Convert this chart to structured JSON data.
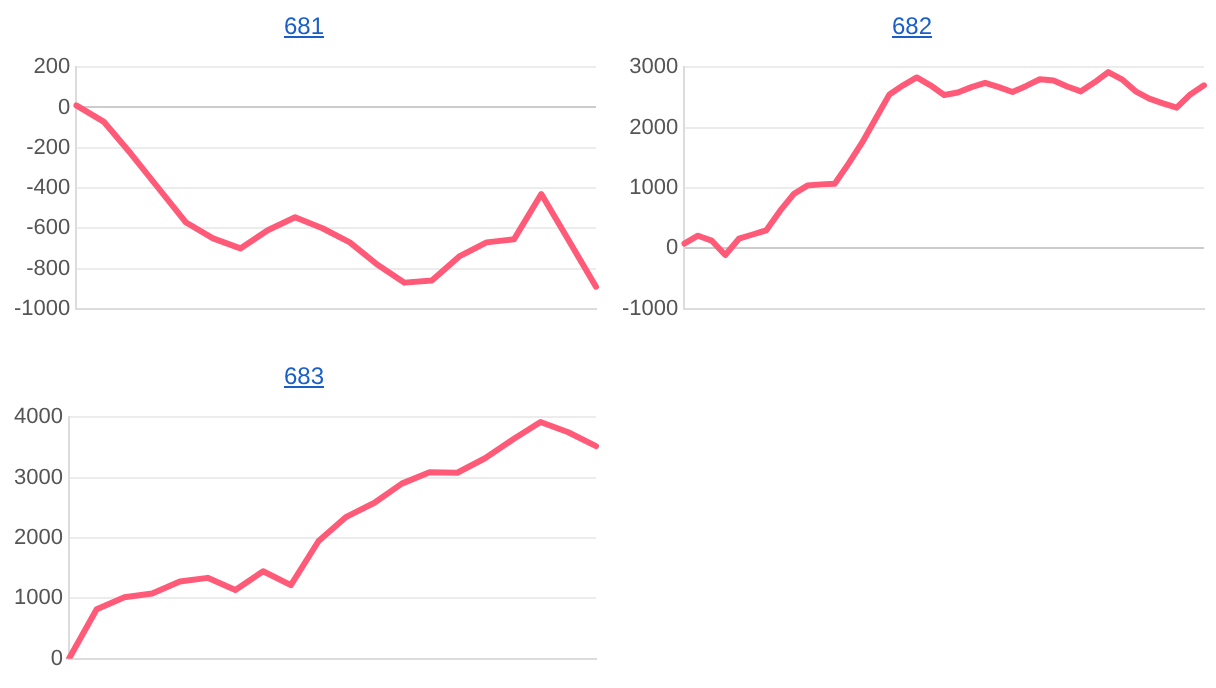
{
  "chart_data": [
    {
      "type": "line",
      "title": "681",
      "categories": [
        null,
        null,
        null,
        null,
        null,
        null,
        null,
        null,
        null,
        null,
        null,
        null,
        null,
        null,
        null,
        null,
        null,
        null,
        null,
        null
      ],
      "series": [
        {
          "color": "#ff5a78",
          "values": [
            10,
            -70,
            -230,
            -400,
            -570,
            -650,
            -700,
            -610,
            -545,
            -600,
            -670,
            -780,
            -870,
            -860,
            -740,
            -670,
            -655,
            -430,
            -660,
            -890
          ]
        }
      ],
      "ylim": [
        -1000,
        200
      ],
      "yticks": [
        -1000,
        -800,
        -600,
        -400,
        -200,
        0,
        200
      ],
      "grid": "y",
      "tick_labels": "y",
      "marker": "none"
    },
    {
      "type": "line",
      "title": "682",
      "categories": [
        null,
        null,
        null,
        null,
        null,
        null,
        null,
        null,
        null,
        null,
        null,
        null,
        null,
        null,
        null,
        null,
        null,
        null,
        null,
        null,
        null,
        null,
        null,
        null,
        null,
        null,
        null,
        null,
        null,
        null,
        null,
        null,
        null,
        null,
        null,
        null,
        null,
        null,
        null
      ],
      "series": [
        {
          "color": "#ff5a78",
          "values": [
            80,
            210,
            130,
            -110,
            160,
            230,
            300,
            620,
            900,
            1040,
            1060,
            1070,
            1400,
            1750,
            2150,
            2550,
            2700,
            2830,
            2700,
            2540,
            2580,
            2670,
            2740,
            2670,
            2590,
            2690,
            2800,
            2780,
            2680,
            2600,
            2750,
            2920,
            2800,
            2600,
            2480,
            2400,
            2330,
            2550,
            2700
          ]
        }
      ],
      "ylim": [
        -1000,
        3000
      ],
      "yticks": [
        -1000,
        0,
        1000,
        2000,
        3000
      ],
      "grid": "y",
      "tick_labels": "y",
      "marker": "none"
    },
    {
      "type": "line",
      "title": "683",
      "categories": [
        null,
        null,
        null,
        null,
        null,
        null,
        null,
        null,
        null,
        null,
        null,
        null,
        null,
        null,
        null,
        null,
        null,
        null,
        null,
        null
      ],
      "series": [
        {
          "color": "#ff5a78",
          "values": [
            0,
            820,
            1020,
            1080,
            1280,
            1340,
            1140,
            1450,
            1220,
            1950,
            2350,
            2580,
            2900,
            3090,
            3080,
            3320,
            3630,
            3920,
            3750,
            3520
          ]
        }
      ],
      "ylim": [
        0,
        4000
      ],
      "yticks": [
        0,
        1000,
        2000,
        3000,
        4000
      ],
      "grid": "y",
      "tick_labels": "y",
      "marker": "none"
    }
  ]
}
